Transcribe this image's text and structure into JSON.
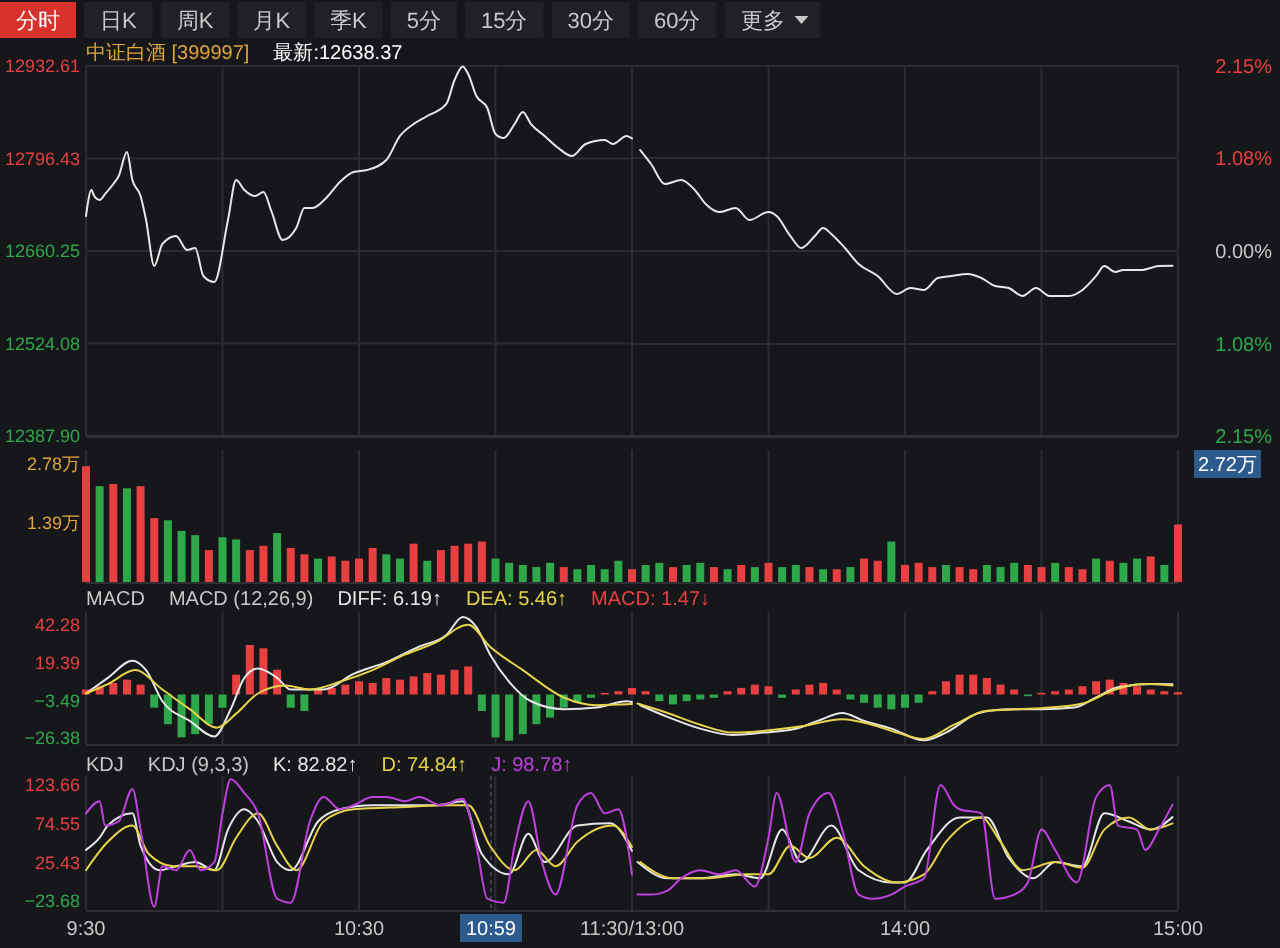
{
  "chart_data": [
    {
      "type": "other",
      "annotations": [
        "分时",
        "日K",
        "周K",
        "月K",
        "季K",
        "5分",
        "15分",
        "30分",
        "60分",
        "更多"
      ]
    },
    {
      "type": "line",
      "title": "中证白酒 [399997]",
      "subtitle": "最新:12638.37",
      "xlim": [
        9.5,
        11.5
      ],
      "xticks": [
        {
          "value": 9.5,
          "label": null
        },
        {
          "value": 10,
          "label": null
        },
        {
          "value": 10.5,
          "label": null
        },
        {
          "value": 11,
          "label": null
        },
        {
          "value": 11.5,
          "label": null
        }
      ],
      "ylim": [
        12387.9,
        12932.61
      ],
      "yticks": [
        {
          "value": 12387.9,
          "label": "12387.90"
        },
        12524.08,
        12660.25,
        12796.43,
        12932.61
      ],
      "grid": true,
      "tick_labels": "y",
      "series": [
        {
          "color": "#e6e6e6",
          "x": [
            9.5,
            9.52,
            9.53,
            9.55,
            9.57,
            9.6,
            9.62,
            9.65,
            9.67,
            9.7,
            9.72,
            9.75,
            9.78,
            9.83,
            9.87,
            9.9,
            9.93,
            9.97,
            10.02,
            10.05,
            10.08,
            10.12,
            10.15,
            10.18,
            10.22,
            10.27,
            10.3,
            10.33,
            10.38,
            10.43,
            10.48,
            10.53,
            10.6,
            10.65,
            10.7,
            10.75,
            10.82,
            10.85,
            10.88,
            10.9,
            10.93,
            10.97,
            11.0,
            11.03,
            11.07,
            11.1,
            11.13,
            11.18,
            11.23,
            11.28,
            11.33,
            11.4,
            11.43,
            11.48,
            11.5
          ],
          "values": [
            12711.8,
            12750.1,
            12741.2,
            12735.4,
            12744.2,
            12758.9,
            12770.7,
            12806.0,
            12764.8,
            12741.2,
            12705.9,
            12638.2,
            12670.6,
            12682.4,
            12661.8,
            12664.7,
            12623.5,
            12614.6,
            12705.9,
            12764.8,
            12750.1,
            12741.2,
            12747.1,
            12717.7,
            12676.5,
            12694.1,
            12723.6,
            12723.6,
            12738.3,
            12761.9,
            12776.6,
            12779.5,
            12794.2,
            12829.6,
            12847.2,
            12859.0,
            12876.7,
            12912.0,
            12932.0,
            12920.8,
            12888.4,
            12870.8,
            12832.5,
            12826.6,
            12847.2,
            12864.9,
            12847.2,
            12829.6,
            12811.9,
            12800.1,
            12817.8,
            12823.7,
            12817.8,
            12829.6,
            12826
          ]
        }
      ]
    },
    {
      "type": "line",
      "xlim": [
        13,
        15
      ],
      "xticks": [
        {
          "value": 13.5,
          "label": null
        },
        {
          "value": 14,
          "label": null
        },
        {
          "value": 14.5,
          "label": null
        },
        {
          "value": 15,
          "label": null
        }
      ],
      "ylim": [
        12387.9,
        12932.61
      ],
      "y2lim": [
        -2.15,
        2.15
      ],
      "y2ticks": [
        {
          "value": -2.15,
          "label": "2.15%"
        },
        {
          "value": -1.08,
          "label": "1.08%"
        },
        {
          "value": 0,
          "label": "0.00%"
        },
        {
          "value": 1.08,
          "label": "1.08%"
        },
        {
          "value": 2.15,
          "label": "2.15%"
        }
      ],
      "grid": true,
      "tick_labels": "y",
      "series": [
        {
          "color": "#e6e6e6",
          "x": [
            13.03,
            13.07,
            13.12,
            13.18,
            13.23,
            13.27,
            13.32,
            13.38,
            13.43,
            13.5,
            13.53,
            13.58,
            13.62,
            13.67,
            13.7,
            13.73,
            13.78,
            13.83,
            13.9,
            13.97,
            14.02,
            14.07,
            14.12,
            14.17,
            14.23,
            14.28,
            14.33,
            14.38,
            14.43,
            14.48,
            14.53,
            14.6,
            14.65,
            14.7,
            14.73,
            14.77,
            14.8,
            14.87,
            14.9,
            14.93,
            14.98
          ],
          "values": [
            12808.9,
            12788.3,
            12758.9,
            12764.8,
            12750.1,
            12729.5,
            12717.7,
            12723.6,
            12705.9,
            12717.7,
            12711.8,
            12682.4,
            12664.7,
            12682.4,
            12694.1,
            12685.3,
            12664.7,
            12641.2,
            12623.5,
            12597.0,
            12605.8,
            12602.9,
            12620.5,
            12623.5,
            12626.4,
            12620.5,
            12608.8,
            12605.8,
            12594.0,
            12605.8,
            12594.0,
            12594.0,
            12602.9,
            12623.5,
            12638.2,
            12629.4,
            12632.3,
            12632.3,
            12635.3,
            12638.2,
            12638.37
          ]
        }
      ]
    },
    {
      "type": "bar",
      "xlim": [
        9.5,
        11.5
      ],
      "xticks": [
        {
          "value": 9.5,
          "label": null
        },
        {
          "value": 10,
          "label": null
        },
        {
          "value": 10.5,
          "label": null
        },
        {
          "value": 11,
          "label": null
        },
        {
          "value": 11.5,
          "label": null
        }
      ],
      "ylim": [
        0,
        3.1
      ],
      "yticks": [
        {
          "value": 1.39,
          "label": "1.39万"
        },
        {
          "value": 2.78,
          "label": "2.78万"
        }
      ],
      "grid": "x",
      "tick_labels": "y",
      "x": [
        9.5,
        9.55,
        9.6,
        9.65,
        9.7,
        9.75,
        9.8,
        9.85,
        9.9,
        9.95,
        10.0,
        10.05,
        10.1,
        10.15,
        10.2,
        10.25,
        10.3,
        10.35,
        10.4,
        10.45,
        10.5,
        10.55,
        10.6,
        10.65,
        10.7,
        10.75,
        10.8,
        10.85,
        10.9,
        10.95,
        11.0,
        11.05,
        11.1,
        11.15,
        11.2,
        11.25,
        11.3,
        11.35,
        11.4,
        11.45,
        11.5
      ],
      "values": [
        2.72,
        2.25,
        2.3,
        2.2,
        2.25,
        1.5,
        1.45,
        1.2,
        1.1,
        0.75,
        1.05,
        1.0,
        0.75,
        0.85,
        1.15,
        0.8,
        0.65,
        0.55,
        0.6,
        0.5,
        0.55,
        0.8,
        0.65,
        0.55,
        0.9,
        0.5,
        0.75,
        0.85,
        0.9,
        0.95,
        0.55,
        0.45,
        0.4,
        0.35,
        0.45,
        0.35,
        0.3,
        0.4,
        0.3,
        0.5,
        0.3
      ],
      "colors": [
        "#e84040",
        "#2fa84a",
        "#e84040",
        "#2fa84a",
        "#e84040",
        "#e84040",
        "#2fa84a",
        "#2fa84a",
        "#2fa84a",
        "#e84040",
        "#2fa84a",
        "#2fa84a",
        "#e84040",
        "#e84040",
        "#2fa84a",
        "#e84040",
        "#e84040",
        "#2fa84a",
        "#e84040",
        "#e84040",
        "#e84040",
        "#e84040",
        "#2fa84a",
        "#2fa84a",
        "#e84040",
        "#2fa84a",
        "#e84040",
        "#e84040",
        "#e84040",
        "#e84040",
        "#2fa84a",
        "#2fa84a",
        "#2fa84a",
        "#2fa84a",
        "#2fa84a",
        "#e84040",
        "#2fa84a",
        "#2fa84a",
        "#2fa84a",
        "#2fa84a",
        "#e84040"
      ]
    },
    {
      "type": "bar",
      "xlim": [
        13,
        15
      ],
      "xticks": [
        {
          "value": 13.5,
          "label": null
        },
        {
          "value": 14,
          "label": null
        },
        {
          "value": 14.5,
          "label": null
        },
        {
          "value": 15,
          "label": null
        }
      ],
      "ylim": [
        0,
        3.1
      ],
      "grid": "x",
      "tick_labels": false,
      "annotations": [
        "2.72万"
      ],
      "x": [
        13.05,
        13.1,
        13.15,
        13.2,
        13.25,
        13.3,
        13.35,
        13.4,
        13.45,
        13.5,
        13.55,
        13.6,
        13.65,
        13.7,
        13.75,
        13.8,
        13.85,
        13.9,
        13.95,
        14.0,
        14.05,
        14.1,
        14.15,
        14.2,
        14.25,
        14.3,
        14.35,
        14.4,
        14.45,
        14.5,
        14.55,
        14.6,
        14.65,
        14.7,
        14.75,
        14.8,
        14.85,
        14.9,
        14.95,
        15.0
      ],
      "values": [
        0.4,
        0.45,
        0.35,
        0.4,
        0.45,
        0.35,
        0.3,
        0.4,
        0.35,
        0.45,
        0.35,
        0.4,
        0.35,
        0.3,
        0.3,
        0.35,
        0.55,
        0.5,
        0.95,
        0.4,
        0.45,
        0.35,
        0.4,
        0.35,
        0.3,
        0.4,
        0.35,
        0.45,
        0.4,
        0.35,
        0.45,
        0.35,
        0.3,
        0.55,
        0.5,
        0.45,
        0.55,
        0.6,
        0.4,
        1.35
      ],
      "colors": [
        "#2fa84a",
        "#2fa84a",
        "#e84040",
        "#2fa84a",
        "#2fa84a",
        "#e84040",
        "#2fa84a",
        "#e84040",
        "#2fa84a",
        "#e84040",
        "#2fa84a",
        "#2fa84a",
        "#e84040",
        "#2fa84a",
        "#e84040",
        "#2fa84a",
        "#e84040",
        "#e84040",
        "#2fa84a",
        "#e84040",
        "#e84040",
        "#e84040",
        "#2fa84a",
        "#e84040",
        "#e84040",
        "#2fa84a",
        "#2fa84a",
        "#2fa84a",
        "#e84040",
        "#e84040",
        "#2fa84a",
        "#e84040",
        "#e84040",
        "#2fa84a",
        "#e84040",
        "#2fa84a",
        "#2fa84a",
        "#e84040",
        "#2fa84a",
        "#e84040"
      ]
    },
    {
      "type": "line",
      "title": "MACD",
      "subtitle": "MACD (12,26,9)",
      "xlim": [
        9.5,
        11.5
      ],
      "xticks": [
        {
          "value": 9.5,
          "label": null
        },
        {
          "value": 10,
          "label": null
        },
        {
          "value": 10.5,
          "label": null
        },
        {
          "value": 11,
          "label": null
        },
        {
          "value": 11.5,
          "label": null
        }
      ],
      "ylim": [
        -30,
        50
      ],
      "yticks": [
        -26.38,
        -3.49,
        19.39,
        42.28
      ],
      "grid": "x",
      "tick_labels": "y",
      "legend": "top",
      "series": [
        {
          "type": "bar",
          "name": "MACD: 1.47↓",
          "color": "#e84040",
          "x": [
            9.5,
            9.55,
            9.6,
            9.65,
            9.7,
            9.75,
            9.8,
            9.85,
            9.9,
            9.95,
            10.0,
            10.05,
            10.1,
            10.15,
            10.2,
            10.25,
            10.3,
            10.35,
            10.4,
            10.45,
            10.5,
            10.55,
            10.6,
            10.65,
            10.7,
            10.75,
            10.8,
            10.85,
            10.9,
            10.95,
            11.0,
            11.05,
            11.1,
            11.15,
            11.2,
            11.25,
            11.3,
            11.35,
            11.4,
            11.45,
            11.5
          ],
          "values": [
            3,
            5,
            7,
            9,
            6,
            -8,
            -18,
            -26,
            -24,
            -18,
            -8,
            12,
            30,
            28,
            15,
            -8,
            -10,
            3,
            4,
            6,
            8,
            7,
            10,
            9,
            11,
            13,
            12,
            15,
            17,
            -10,
            -26,
            -28,
            -24,
            -18,
            -14,
            -8,
            -5,
            -2,
            1,
            2,
            4
          ],
          "colors": [
            "#e84040",
            "#e84040",
            "#e84040",
            "#e84040",
            "#e84040",
            "#2fa84a",
            "#2fa84a",
            "#2fa84a",
            "#2fa84a",
            "#2fa84a",
            "#2fa84a",
            "#e84040",
            "#e84040",
            "#e84040",
            "#e84040",
            "#2fa84a",
            "#2fa84a",
            "#e84040",
            "#e84040",
            "#e84040",
            "#e84040",
            "#e84040",
            "#e84040",
            "#e84040",
            "#e84040",
            "#e84040",
            "#e84040",
            "#e84040",
            "#e84040",
            "#2fa84a",
            "#2fa84a",
            "#2fa84a",
            "#2fa84a",
            "#2fa84a",
            "#2fa84a",
            "#2fa84a",
            "#2fa84a",
            "#2fa84a",
            "#e84040",
            "#e84040",
            "#e84040"
          ]
        },
        {
          "name": "DIFF: 6.19↑",
          "color": "#e6e6e6",
          "x": [
            9.5,
            9.58,
            9.67,
            9.72,
            9.78,
            9.88,
            9.97,
            10.03,
            10.08,
            10.13,
            10.2,
            10.25,
            10.37,
            10.48,
            10.6,
            10.72,
            10.82,
            10.88,
            10.93,
            10.98,
            11.05,
            11.13,
            11.25,
            11.37,
            11.48,
            11.5
          ],
          "values": [
            0.6,
            10.1,
            20.5,
            14.8,
            -4.1,
            -16.0,
            -25.4,
            -8.9,
            10.1,
            15.8,
            10.1,
            3.0,
            3.0,
            12.5,
            19.6,
            29.0,
            36.1,
            47.0,
            40.9,
            24.3,
            7.7,
            -4.1,
            -8.9,
            -7.9,
            -4.1,
            -4.5
          ]
        },
        {
          "name": "DEA: 5.46↑",
          "color": "#e6d34a",
          "x": [
            9.5,
            9.58,
            9.68,
            9.78,
            9.88,
            9.98,
            10.05,
            10.13,
            10.23,
            10.32,
            10.43,
            10.55,
            10.67,
            10.78,
            10.9,
            10.98,
            11.1,
            11.25,
            11.37,
            11.5
          ],
          "values": [
            0.6,
            6.3,
            14.8,
            3.0,
            -8.9,
            -20.1,
            -11.6,
            0.6,
            5.4,
            3.0,
            7.7,
            14.8,
            24.3,
            31.4,
            42.3,
            29.0,
            14.8,
            -1.8,
            -6.5,
            -5.8
          ]
        }
      ]
    },
    {
      "type": "line",
      "xlim": [
        13,
        15
      ],
      "xticks": [
        {
          "value": 13.5,
          "label": null
        },
        {
          "value": 14,
          "label": null
        },
        {
          "value": 14.5,
          "label": null
        },
        {
          "value": 15,
          "label": null
        }
      ],
      "ylim": [
        -30,
        50
      ],
      "grid": "x",
      "tick_labels": false,
      "series": [
        {
          "type": "bar",
          "x": [
            13.05,
            13.1,
            13.15,
            13.2,
            13.25,
            13.3,
            13.35,
            13.4,
            13.45,
            13.5,
            13.55,
            13.6,
            13.65,
            13.7,
            13.75,
            13.8,
            13.85,
            13.9,
            13.95,
            14.0,
            14.05,
            14.1,
            14.15,
            14.2,
            14.25,
            14.3,
            14.35,
            14.4,
            14.45,
            14.5,
            14.55,
            14.6,
            14.65,
            14.7,
            14.75,
            14.8,
            14.85,
            14.9,
            14.95,
            15.0
          ],
          "values": [
            2,
            -4,
            -6,
            -4,
            -3,
            -2,
            2,
            4,
            6,
            5,
            -2,
            3,
            6,
            7,
            3,
            -3,
            -5,
            -8,
            -9,
            -8,
            -5,
            2,
            8,
            12,
            12,
            10,
            6,
            3,
            -1,
            1,
            2,
            3,
            5,
            8,
            9,
            7,
            5,
            3,
            2,
            1.47
          ],
          "colors": [
            "#e84040",
            "#2fa84a",
            "#2fa84a",
            "#2fa84a",
            "#2fa84a",
            "#2fa84a",
            "#e84040",
            "#e84040",
            "#e84040",
            "#e84040",
            "#2fa84a",
            "#e84040",
            "#e84040",
            "#e84040",
            "#e84040",
            "#2fa84a",
            "#2fa84a",
            "#2fa84a",
            "#2fa84a",
            "#2fa84a",
            "#2fa84a",
            "#e84040",
            "#e84040",
            "#e84040",
            "#e84040",
            "#e84040",
            "#e84040",
            "#e84040",
            "#2fa84a",
            "#e84040",
            "#e84040",
            "#e84040",
            "#e84040",
            "#e84040",
            "#e84040",
            "#e84040",
            "#e84040",
            "#e84040",
            "#e84040",
            "#e84040"
          ]
        },
        {
          "color": "#e6e6e6",
          "x": [
            13.03,
            13.13,
            13.25,
            13.37,
            13.48,
            13.6,
            13.68,
            13.77,
            13.85,
            13.95,
            14.07,
            14.15,
            14.27,
            14.38,
            14.5,
            14.62,
            14.7,
            14.78,
            14.9,
            14.98
          ],
          "values": [
            -6.5,
            -13.6,
            -20.7,
            -24.5,
            -23.1,
            -20.7,
            -16.0,
            -11.2,
            -16.0,
            -20.7,
            -27.8,
            -23.1,
            -11.2,
            -8.9,
            -8.9,
            -7.9,
            -1.8,
            4.4,
            6.3,
            6.19
          ]
        },
        {
          "color": "#e6d34a",
          "x": [
            13.02,
            13.13,
            13.25,
            13.37,
            13.48,
            13.62,
            13.77,
            13.88,
            13.97,
            14.07,
            14.18,
            14.3,
            14.42,
            14.53,
            14.65,
            14.77,
            14.88,
            14.98
          ],
          "values": [
            -5.5,
            -11.2,
            -18.3,
            -23.1,
            -22.1,
            -19.3,
            -15.0,
            -18.3,
            -23.1,
            -26.9,
            -18.3,
            -9.8,
            -8.9,
            -7.9,
            -5.5,
            3.0,
            6.3,
            5.46
          ]
        }
      ]
    },
    {
      "type": "line",
      "title": "KDJ",
      "subtitle": "KDJ (9,3,3)",
      "xlim": [
        9.5,
        11.5
      ],
      "xticks": [
        {
          "value": 9.5,
          "label": "9:30"
        },
        {
          "value": 10,
          "label": null
        },
        {
          "value": 10.5,
          "label": "10:30"
        },
        {
          "value": 10.983333,
          "label": "10:59"
        },
        {
          "value": 11,
          "label": null
        },
        {
          "value": 11.5,
          "label": "11:30/13:00"
        }
      ],
      "ylim": [
        -35,
        135
      ],
      "yticks": [
        -23.68,
        25.43,
        74.55,
        123.66
      ],
      "grid": "x",
      "legend": "top",
      "ref_lines": [
        {
          "axis": "x",
          "value": 10.983333
        }
      ],
      "series": [
        {
          "name": "K: 82.82↑",
          "color": "#e6e6e6",
          "x": [
            9.5,
            9.55,
            9.58,
            9.67,
            9.7,
            9.77,
            9.83,
            9.9,
            9.97,
            10.02,
            10.08,
            10.13,
            10.2,
            10.25,
            10.35,
            10.43,
            10.55,
            10.67,
            10.78,
            10.88,
            10.95,
            11.05,
            11.12,
            11.18,
            11.3,
            11.42,
            11.5
          ],
          "values": [
            41.2,
            56.7,
            72.1,
            87.6,
            46.4,
            15.5,
            20.6,
            25.8,
            15.5,
            67.0,
            92.8,
            77.3,
            25.8,
            15.5,
            77.3,
            92.8,
            97.9,
            97.9,
            97.9,
            103.1,
            36.1,
            10.3,
            61.8,
            25.8,
            72.1,
            75.2,
            40.0
          ]
        },
        {
          "name": "D: 74.84↑",
          "color": "#e6d34a",
          "x": [
            9.5,
            9.58,
            9.67,
            9.73,
            9.82,
            9.9,
            9.98,
            10.05,
            10.13,
            10.2,
            10.27,
            10.37,
            10.48,
            10.67,
            10.83,
            10.9,
            10.98,
            11.07,
            11.15,
            11.22,
            11.3,
            11.43,
            11.5
          ],
          "values": [
            15.5,
            51.5,
            72.1,
            36.1,
            20.6,
            20.6,
            15.5,
            56.7,
            87.6,
            46.4,
            15.5,
            77.3,
            92.8,
            95.8,
            97.9,
            97.9,
            46.4,
            15.5,
            41.2,
            20.6,
            51.5,
            72.1,
            45.0
          ]
        },
        {
          "name": "J: 98.78↑",
          "color": "#c040e0",
          "x": [
            9.5,
            9.55,
            9.57,
            9.62,
            9.67,
            9.7,
            9.75,
            9.78,
            9.83,
            9.88,
            9.92,
            9.97,
            10.0,
            10.03,
            10.08,
            10.13,
            10.2,
            10.25,
            10.32,
            10.37,
            10.43,
            10.48,
            10.55,
            10.6,
            10.67,
            10.72,
            10.8,
            10.88,
            10.93,
            10.97,
            11.03,
            11.07,
            11.12,
            11.17,
            11.22,
            11.3,
            11.35,
            11.4,
            11.45,
            11.5
          ],
          "values": [
            87.6,
            103.1,
            72.1,
            77.3,
            118.5,
            67.0,
            -30.9,
            20.6,
            15.5,
            41.2,
            15.5,
            25.8,
            87.6,
            130.9,
            113.4,
            87.6,
            -20.6,
            -25.7,
            77.3,
            108.2,
            92.8,
            97.9,
            108.2,
            108.2,
            103.1,
            108.2,
            97.9,
            106.1,
            46.4,
            -20.6,
            -25.7,
            46.4,
            103.1,
            25.8,
            -15.4,
            97.9,
            113.4,
            87.6,
            92.8,
            10.0
          ]
        }
      ]
    },
    {
      "type": "line",
      "xlim": [
        13,
        15
      ],
      "xticks": [
        {
          "value": 13.5,
          "label": null
        },
        {
          "value": 14,
          "label": "14:00"
        },
        {
          "value": 14.5,
          "label": null
        },
        {
          "value": 15,
          "label": "15:00"
        }
      ],
      "ylim": [
        -35,
        135
      ],
      "grid": "x",
      "tick_labels": "x",
      "series": [
        {
          "color": "#e6e6e6",
          "x": [
            13.02,
            13.13,
            13.25,
            13.38,
            13.47,
            13.55,
            13.62,
            13.73,
            13.83,
            13.95,
            14.0,
            14.08,
            14.2,
            14.3,
            14.38,
            14.47,
            14.55,
            14.65,
            14.73,
            14.82,
            14.9,
            14.98
          ],
          "values": [
            25.8,
            5.2,
            5.2,
            10.3,
            5.2,
            67.0,
            25.8,
            72.1,
            15.5,
            0.0,
            0.0,
            41.2,
            82.4,
            82.4,
            31.0,
            5.2,
            25.8,
            20.6,
            87.6,
            77.3,
            67.0,
            82.82
          ]
        },
        {
          "color": "#e6d34a",
          "x": [
            13.03,
            13.15,
            13.27,
            13.42,
            13.5,
            13.58,
            13.65,
            13.75,
            13.85,
            13.97,
            14.07,
            14.15,
            14.28,
            14.35,
            14.43,
            14.55,
            14.65,
            14.73,
            14.82,
            14.9,
            14.98
          ],
          "values": [
            25.8,
            5.2,
            5.2,
            10.3,
            10.3,
            46.4,
            31.0,
            56.7,
            20.6,
            0.0,
            10.3,
            51.5,
            82.4,
            51.5,
            15.5,
            25.8,
            18.6,
            67.0,
            82.4,
            67.0,
            74.84
          ]
        },
        {
          "color": "#c040e0",
          "x": [
            13.02,
            13.07,
            13.13,
            13.18,
            13.25,
            13.32,
            13.38,
            13.45,
            13.5,
            13.53,
            13.6,
            13.65,
            13.72,
            13.77,
            13.83,
            13.88,
            13.95,
            14.0,
            14.07,
            14.13,
            14.18,
            14.2,
            14.28,
            14.33,
            14.4,
            14.45,
            14.5,
            14.55,
            14.63,
            14.7,
            14.75,
            14.78,
            14.85,
            14.88,
            14.93,
            14.98
          ],
          "values": [
            -15.4,
            -15.4,
            -10.3,
            5.2,
            15.5,
            10.3,
            15.5,
            -5.1,
            56.7,
            113.4,
            25.8,
            87.6,
            113.4,
            67.0,
            -15.4,
            -20.6,
            -15.4,
            -5.1,
            5.2,
            123.7,
            97.9,
            92.8,
            87.6,
            -20.6,
            -15.4,
            0.0,
            67.0,
            41.2,
            0.0,
            108.2,
            123.7,
            72.1,
            67.0,
            41.2,
            67.0,
            98.78
          ]
        }
      ]
    }
  ]
}
